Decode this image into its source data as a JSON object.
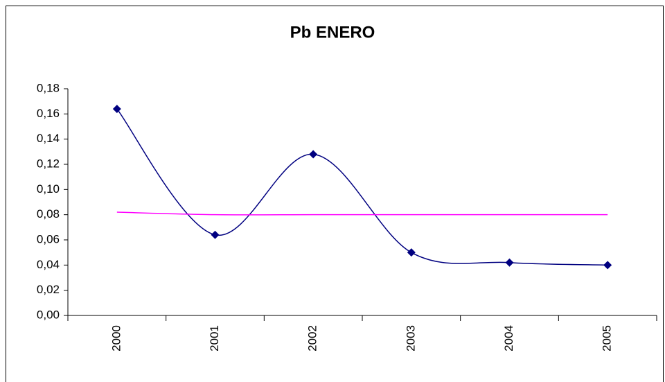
{
  "chart_data": {
    "type": "line",
    "title": "Pb ENERO",
    "smooth": true,
    "categories": [
      "2000",
      "2001",
      "2002",
      "2003",
      "2004",
      "2005"
    ],
    "series": [
      {
        "color": "#000080",
        "markers": true,
        "values": [
          0.164,
          0.064,
          0.128,
          0.05,
          0.042,
          0.04
        ]
      },
      {
        "color": "#ff00ff",
        "markers": false,
        "values": [
          0.082,
          0.08,
          0.08,
          0.08,
          0.08,
          0.08
        ]
      }
    ],
    "ylim": [
      0,
      0.18
    ],
    "yticks": [
      {
        "value": 0,
        "label": "0,00"
      },
      {
        "value": 0.02,
        "label": "0,02"
      },
      {
        "value": 0.04,
        "label": "0,04"
      },
      {
        "value": 0.06,
        "label": "0,06"
      },
      {
        "value": 0.08,
        "label": "0,08"
      },
      {
        "value": 0.1,
        "label": "0,10"
      },
      {
        "value": 0.12,
        "label": "0,12"
      },
      {
        "value": 0.14,
        "label": "0,14"
      },
      {
        "value": 0.16,
        "label": "0,16"
      },
      {
        "value": 0.18,
        "label": "0,18"
      }
    ],
    "grid": false
  }
}
